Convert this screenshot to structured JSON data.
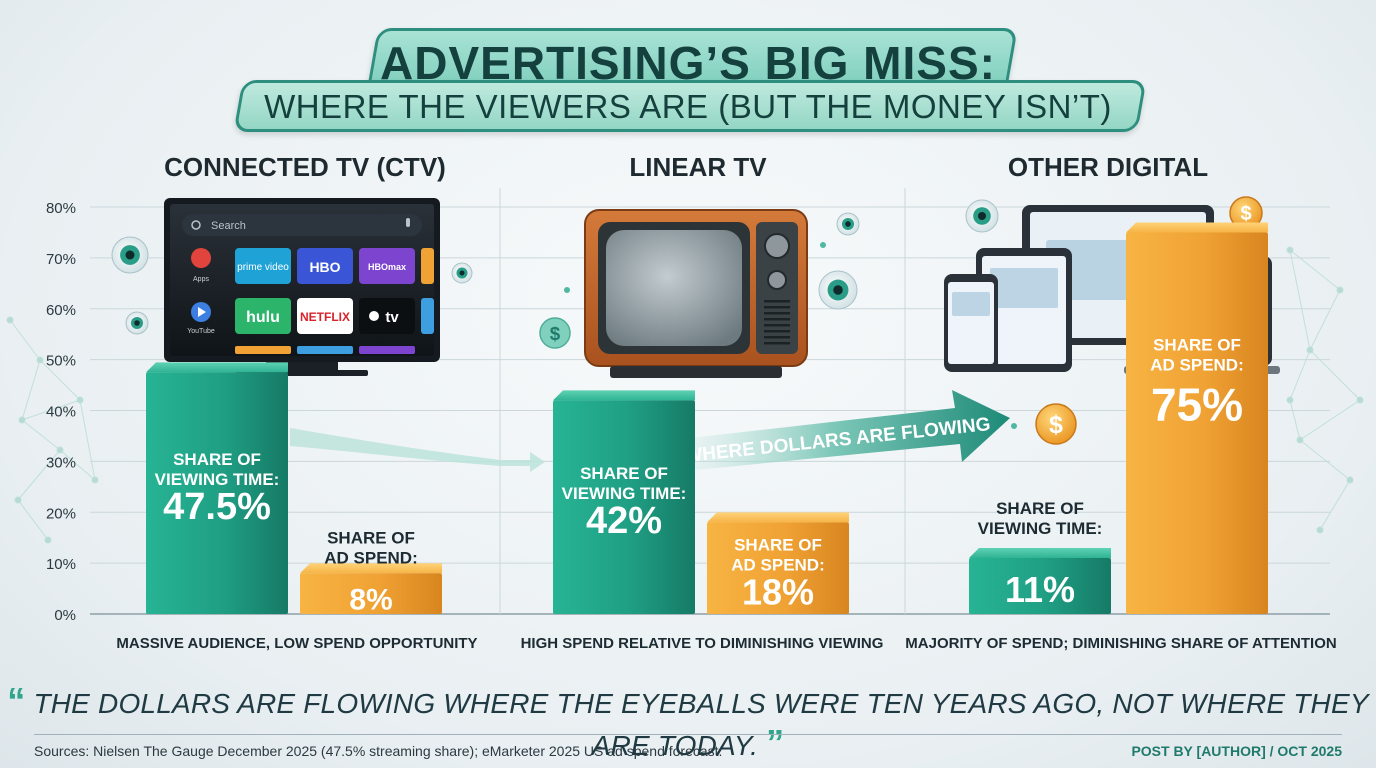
{
  "header": {
    "title": "ADVERTISING’S BIG MISS:",
    "subtitle": "WHERE THE VIEWERS ARE (BUT THE MONEY ISN’T)"
  },
  "chart_data": {
    "type": "bar",
    "categories": [
      "CONNECTED TV (CTV)",
      "LINEAR TV",
      "OTHER DIGITAL"
    ],
    "series": [
      {
        "key": "viewing",
        "values": [
          47.5,
          42,
          11
        ],
        "color": "#1f9e83"
      },
      {
        "key": "spend",
        "values": [
          8,
          18,
          75
        ],
        "color": "#f0a234"
      }
    ],
    "ylim": [
      0,
      80
    ],
    "y_ticks": [
      "0%",
      "10%",
      "20%",
      "30%",
      "40%",
      "50%",
      "60%",
      "70%",
      "80%"
    ],
    "bar_labels": {
      "viewing": [
        [
          "SHARE OF",
          "VIEWING TIME:"
        ],
        [
          "SHARE OF",
          "VIEWING TIME:"
        ],
        [
          "SHARE OF",
          "VIEWING TIME:"
        ]
      ],
      "spend": [
        [
          "SHARE OF",
          "AD SPEND:"
        ],
        [
          "SHARE OF",
          "AD SPEND:"
        ],
        [
          "SHARE OF",
          "AD SPEND:"
        ]
      ]
    },
    "value_labels": {
      "viewing": [
        "47.5%",
        "42%",
        "11%"
      ],
      "spend": [
        "8%",
        "18%",
        "75%"
      ]
    },
    "captions": [
      "MASSIVE AUDIENCE, LOW SPEND OPPORTUNITY",
      "HIGH SPEND RELATIVE TO DIMINISHING VIEWING",
      "MAJORITY OF SPEND; DIMINISHING SHARE OF ATTENTION"
    ],
    "annotation": "WHERE DOLLARS ARE FLOWING",
    "grid": true
  },
  "tv_screen": {
    "search_placeholder": "Search",
    "apps_label": "Apps",
    "youtube_label": "YouTube",
    "tiles_row1": [
      "prime video",
      "HBO",
      "HBOmax"
    ],
    "tiles_row2": [
      "hulu",
      "NETFLIX",
      "tv"
    ]
  },
  "colors": {
    "teal": "#1f9e83",
    "orange": "#f0a234",
    "accent": "#2f8f7f"
  },
  "footer": {
    "quote": "THE DOLLARS ARE FLOWING WHERE THE EYEBALLS WERE TEN YEARS AGO, NOT WHERE THEY ARE TODAY.",
    "quote_open": "“",
    "quote_close": "”",
    "sources": "Sources: Nielsen The Gauge December 2025 (47.5% streaming share); eMarketer 2025 US ad spend forecast.",
    "byline": "POST BY [AUTHOR] / OCT 2025"
  }
}
